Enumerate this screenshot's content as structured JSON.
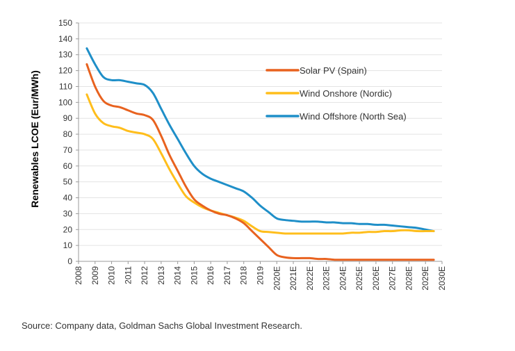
{
  "chart_data": {
    "type": "line",
    "ylabel": "Renewables LCOE (Eur/MWh)",
    "xlabel": "",
    "ylim": [
      0,
      150
    ],
    "yticks": [
      0,
      10,
      20,
      30,
      40,
      50,
      60,
      70,
      80,
      90,
      100,
      110,
      120,
      130,
      140,
      150
    ],
    "grid": true,
    "legend_position": "top-right",
    "categories": [
      "2008",
      "2009",
      "2010",
      "2011",
      "2012",
      "2013",
      "2014",
      "2015",
      "2016",
      "2017",
      "2018",
      "2019",
      "2020E",
      "2021E",
      "2022E",
      "2023E",
      "2024E",
      "2025E",
      "2026E",
      "2027E",
      "2028E",
      "2029E",
      "2030E"
    ],
    "x": [
      2008.5,
      2009,
      2009.5,
      2010,
      2010.5,
      2011,
      2011.5,
      2012,
      2012.5,
      2013,
      2013.5,
      2014,
      2014.5,
      2015,
      2015.5,
      2016,
      2016.5,
      2017,
      2017.5,
      2018,
      2018.5,
      2019,
      2019.5,
      2020,
      2020.5,
      2021,
      2021.5,
      2022,
      2022.5,
      2023,
      2023.5,
      2024,
      2024.5,
      2025,
      2025.5,
      2026,
      2026.5,
      2027,
      2027.5,
      2028,
      2028.5,
      2029,
      2029.5
    ],
    "series": [
      {
        "name": "Solar PV (Spain)",
        "color": "#E8621F",
        "values": [
          124,
          110,
          101,
          98,
          97,
          95,
          93,
          92,
          89,
          79,
          67,
          57,
          47,
          39,
          35,
          32,
          30,
          29,
          27,
          24,
          19,
          14,
          9,
          4,
          2.5,
          2,
          2,
          2,
          1.5,
          1.5,
          1,
          1,
          1,
          1,
          1,
          1,
          1,
          1,
          1,
          1,
          1,
          1,
          1
        ]
      },
      {
        "name": "Wind Onshore (Nordic)",
        "color": "#FFBE1C",
        "values": [
          105,
          93,
          87,
          85,
          84,
          82,
          81,
          80,
          77,
          68,
          58,
          49,
          41,
          37,
          34,
          32,
          30.5,
          29,
          27.5,
          25.5,
          22,
          19,
          18.5,
          18,
          17.5,
          17.5,
          17.5,
          17.5,
          17.5,
          17.5,
          17.5,
          17.5,
          18,
          18,
          18.5,
          18.5,
          19,
          19,
          19.5,
          19.5,
          19,
          19,
          19
        ]
      },
      {
        "name": "Wind Offshore (North Sea)",
        "color": "#1F8FC8",
        "values": [
          134,
          124,
          116,
          114,
          114,
          113,
          112,
          111,
          106,
          96,
          86,
          77,
          68,
          60,
          55,
          52,
          50,
          48,
          46,
          44,
          40,
          35,
          31,
          27,
          26,
          25.5,
          25,
          25,
          25,
          24.5,
          24.5,
          24,
          24,
          23.5,
          23.5,
          23,
          23,
          22.5,
          22,
          21.5,
          21,
          20,
          19
        ]
      }
    ]
  },
  "source": "Source: Company data, Goldman Sachs Global Investment Research."
}
